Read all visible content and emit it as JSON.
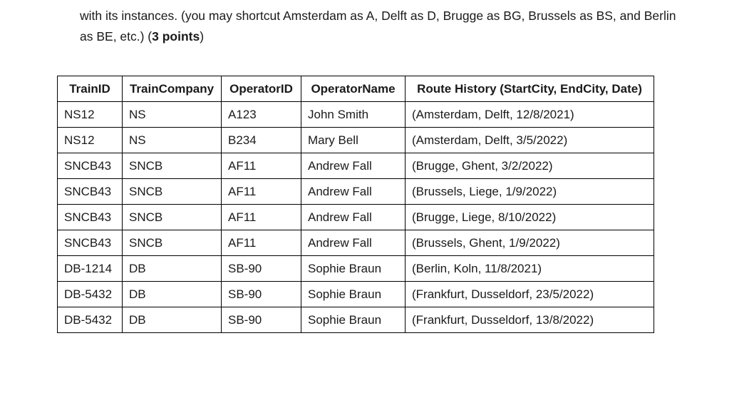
{
  "intro": {
    "line1": "with its instances. (you may shortcut Amsterdam as A, Delft as D, Brugge as BG, Brussels as BS, and Berlin",
    "line2_prefix": "as BE, etc.) (",
    "points": "3 points",
    "line2_suffix": ")"
  },
  "table": {
    "headers": [
      "TrainID",
      "TrainCompany",
      "OperatorID",
      "OperatorName",
      "Route History (StartCity, EndCity, Date)"
    ],
    "rows": [
      [
        "NS12",
        "NS",
        "A123",
        "John Smith",
        "(Amsterdam, Delft, 12/8/2021)"
      ],
      [
        "NS12",
        "NS",
        "B234",
        "Mary Bell",
        "(Amsterdam, Delft, 3/5/2022)"
      ],
      [
        "SNCB43",
        "SNCB",
        "AF11",
        "Andrew Fall",
        "(Brugge, Ghent, 3/2/2022)"
      ],
      [
        "SNCB43",
        "SNCB",
        "AF11",
        "Andrew Fall",
        "(Brussels, Liege, 1/9/2022)"
      ],
      [
        "SNCB43",
        "SNCB",
        "AF11",
        "Andrew Fall",
        "(Brugge, Liege, 8/10/2022)"
      ],
      [
        "SNCB43",
        "SNCB",
        "AF11",
        "Andrew Fall",
        "(Brussels, Ghent, 1/9/2022)"
      ],
      [
        "DB-1214",
        "DB",
        "SB-90",
        "Sophie Braun",
        "(Berlin, Koln, 11/8/2021)"
      ],
      [
        "DB-5432",
        "DB",
        "SB-90",
        "Sophie Braun",
        "(Frankfurt, Dusseldorf, 23/5/2022)"
      ],
      [
        "DB-5432",
        "DB",
        "SB-90",
        "Sophie Braun",
        "(Frankfurt, Dusseldorf, 13/8/2022)"
      ]
    ]
  }
}
